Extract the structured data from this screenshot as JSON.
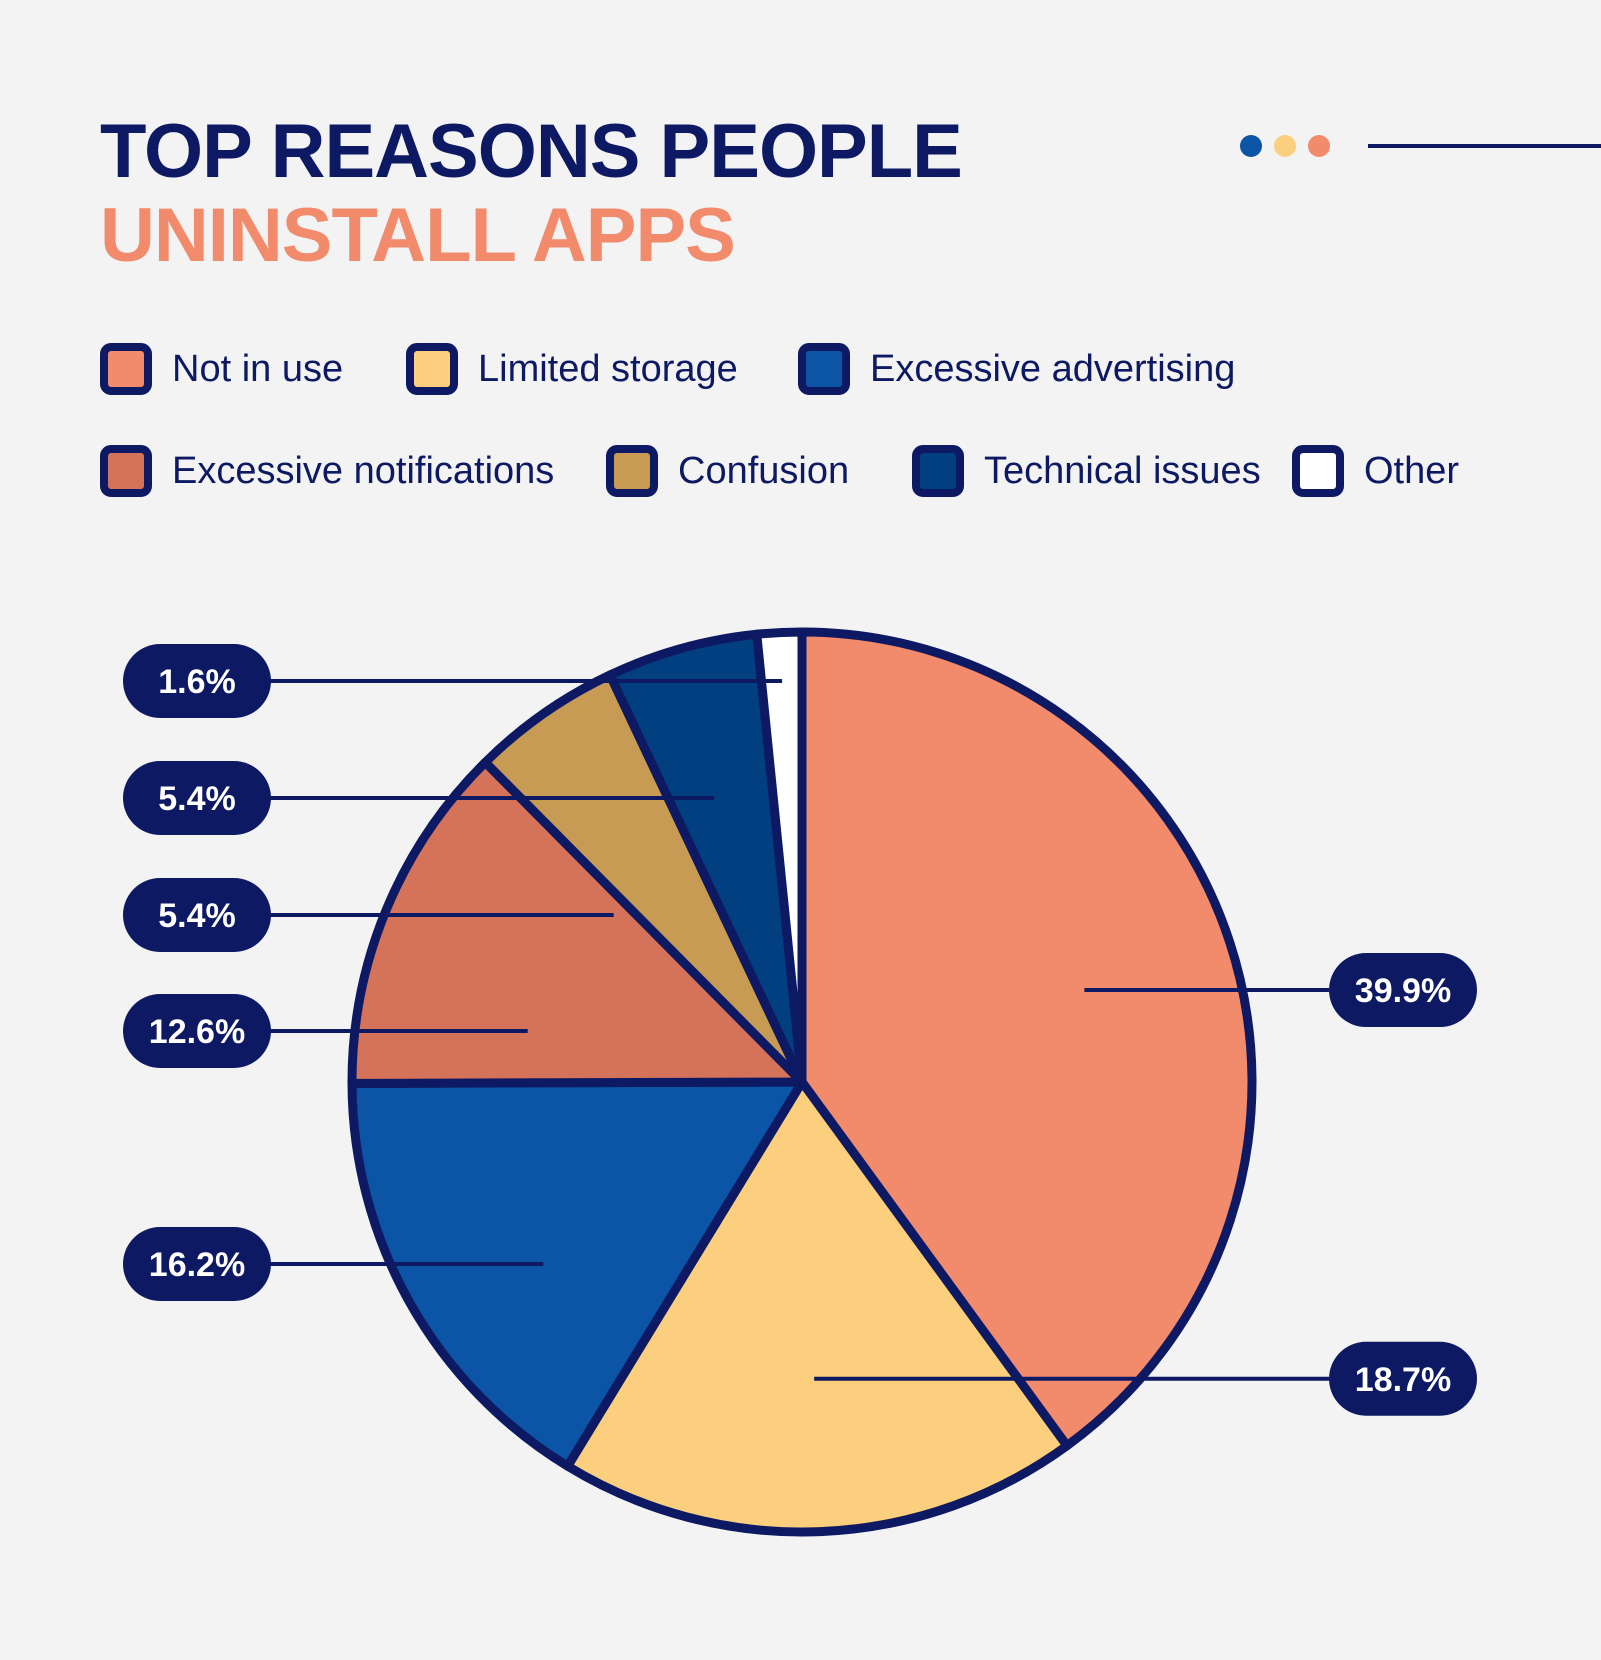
{
  "title": {
    "line1": "TOP REASONS PEOPLE",
    "line2": "UNINSTALL APPS"
  },
  "colors": {
    "navy": "#0d1a63",
    "accent_orange": "#f28a6c",
    "background": "#f3f3f3",
    "deco_dots": [
      "#0b54a6",
      "#fbcf7e",
      "#f28a6c"
    ]
  },
  "legend": {
    "items": [
      {
        "label": "Not in use",
        "color": "#f28a6c"
      },
      {
        "label": "Limited storage",
        "color": "#fbcf7e"
      },
      {
        "label": "Excessive advertising",
        "color": "#0b54a6"
      },
      {
        "label": "Excessive notifications",
        "color": "#d4725a"
      },
      {
        "label": "Confusion",
        "color": "#c89b54"
      },
      {
        "label": "Technical issues",
        "color": "#023f80"
      },
      {
        "label": "Other",
        "color": "#ffffff"
      }
    ]
  },
  "chart_data": {
    "type": "pie",
    "title": "TOP REASONS PEOPLE UNINSTALL APPS",
    "unit": "%",
    "legend_position": "top",
    "slices": [
      {
        "label": "Not in use",
        "value": 39.9,
        "display": "39.9%",
        "color": "#f28a6c"
      },
      {
        "label": "Limited storage",
        "value": 18.7,
        "display": "18.7%",
        "color": "#fbcf7e"
      },
      {
        "label": "Excessive advertising",
        "value": 16.2,
        "display": "16.2%",
        "color": "#0b54a6"
      },
      {
        "label": "Excessive notifications",
        "value": 12.6,
        "display": "12.6%",
        "color": "#d4725a"
      },
      {
        "label": "Confusion",
        "value": 5.4,
        "display": "5.4%",
        "color": "#c89b54"
      },
      {
        "label": "Technical issues",
        "value": 5.4,
        "display": "5.4%",
        "color": "#023f80"
      },
      {
        "label": "Other",
        "value": 1.6,
        "display": "1.6%",
        "color": "#ffffff"
      }
    ]
  }
}
